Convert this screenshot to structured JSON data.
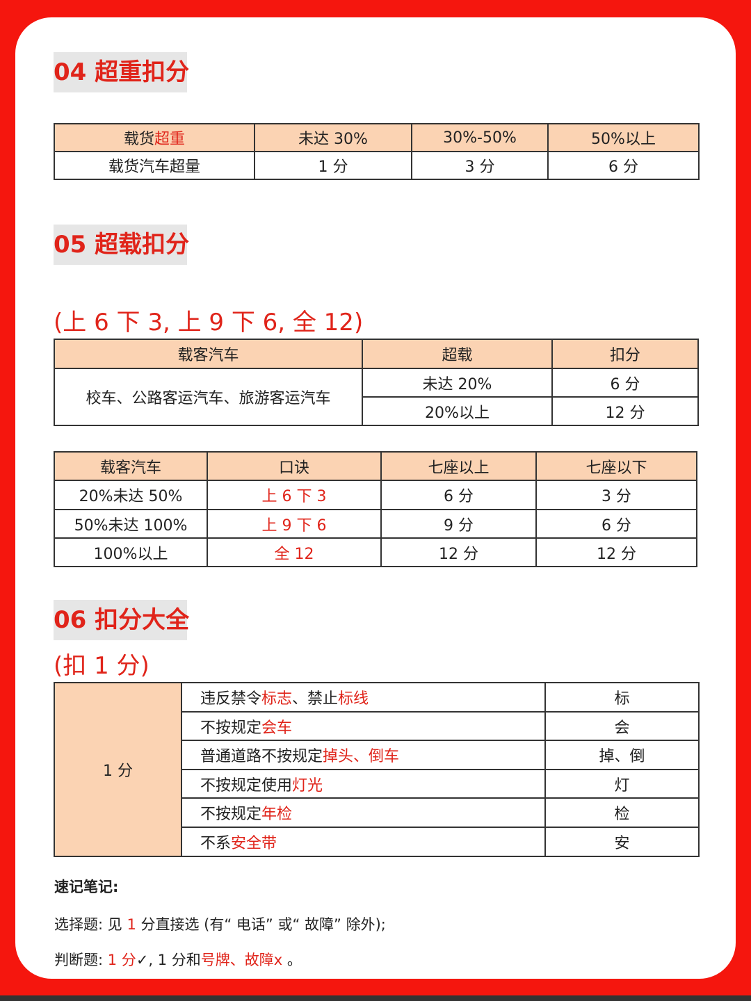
{
  "colors": {
    "frame": "#f5160e",
    "accent_red": "#e0241a",
    "header_bg": "#fbd3b3",
    "badge_bg": "#e6e6e6"
  },
  "s04": {
    "title": "04 超重扣分",
    "header": [
      [
        {
          "t": "载货"
        },
        {
          "t": "超重",
          "red": true
        }
      ],
      [
        {
          "t": "未达 30%"
        }
      ],
      [
        {
          "t": "30%-50%"
        }
      ],
      [
        {
          "t": "50%以上"
        }
      ]
    ],
    "row": [
      "载货汽车超量",
      "1 分",
      "3 分",
      "6 分"
    ]
  },
  "s05": {
    "title": "05 超载扣分",
    "subtitle": "(上 6 下 3, 上 9 下 6, 全 12)",
    "t1": {
      "header": [
        "载客汽车",
        "超载",
        "扣分"
      ],
      "vehicle": "校车、公路客运汽车、旅游客运汽车",
      "rows": [
        [
          "未达 20%",
          "6 分"
        ],
        [
          "20%以上",
          "12 分"
        ]
      ]
    },
    "t2": {
      "header": [
        "载客汽车",
        "口诀",
        "七座以上",
        "七座以下"
      ],
      "rows": [
        [
          "20%未达 50%",
          "上 6 下 3",
          "6 分",
          "3 分"
        ],
        [
          "50%未达 100%",
          "上 9 下 6",
          "9 分",
          "6 分"
        ],
        [
          "100%以上",
          "全 12",
          "12 分",
          "12 分"
        ]
      ]
    }
  },
  "s06": {
    "title": "06 扣分大全",
    "subtitle": "(扣 1 分)",
    "points": "1 分",
    "rows": [
      {
        "item": [
          {
            "t": "违反禁令"
          },
          {
            "t": "标志",
            "red": true
          },
          {
            "t": "、禁止"
          },
          {
            "t": "标线",
            "red": true
          }
        ],
        "key": "标"
      },
      {
        "item": [
          {
            "t": "不按规定"
          },
          {
            "t": "会车",
            "red": true
          }
        ],
        "key": "会"
      },
      {
        "item": [
          {
            "t": "普通道路不按规定"
          },
          {
            "t": "掉头、倒车",
            "red": true
          }
        ],
        "key": "掉、倒"
      },
      {
        "item": [
          {
            "t": "不按规定使用"
          },
          {
            "t": "灯光",
            "red": true
          }
        ],
        "key": "灯"
      },
      {
        "item": [
          {
            "t": "不按规定"
          },
          {
            "t": "年检",
            "red": true
          }
        ],
        "key": "检"
      },
      {
        "item": [
          {
            "t": "不系"
          },
          {
            "t": "安全带",
            "red": true
          }
        ],
        "key": "安"
      }
    ]
  },
  "notes": {
    "title": "速记笔记:",
    "line1": [
      {
        "t": "选择题:  见 "
      },
      {
        "t": "1",
        "red": true
      },
      {
        "t": " 分直接选 (有“ 电话” 或“ 故障” 除外);"
      }
    ],
    "line2": [
      {
        "t": "判断题: "
      },
      {
        "t": "1 分",
        "red": true
      },
      {
        "t": "✓, 1 分和"
      },
      {
        "t": "号牌、故障",
        "red": true
      },
      {
        "t": "x",
        "red": true
      },
      {
        "t": " 。"
      }
    ]
  }
}
